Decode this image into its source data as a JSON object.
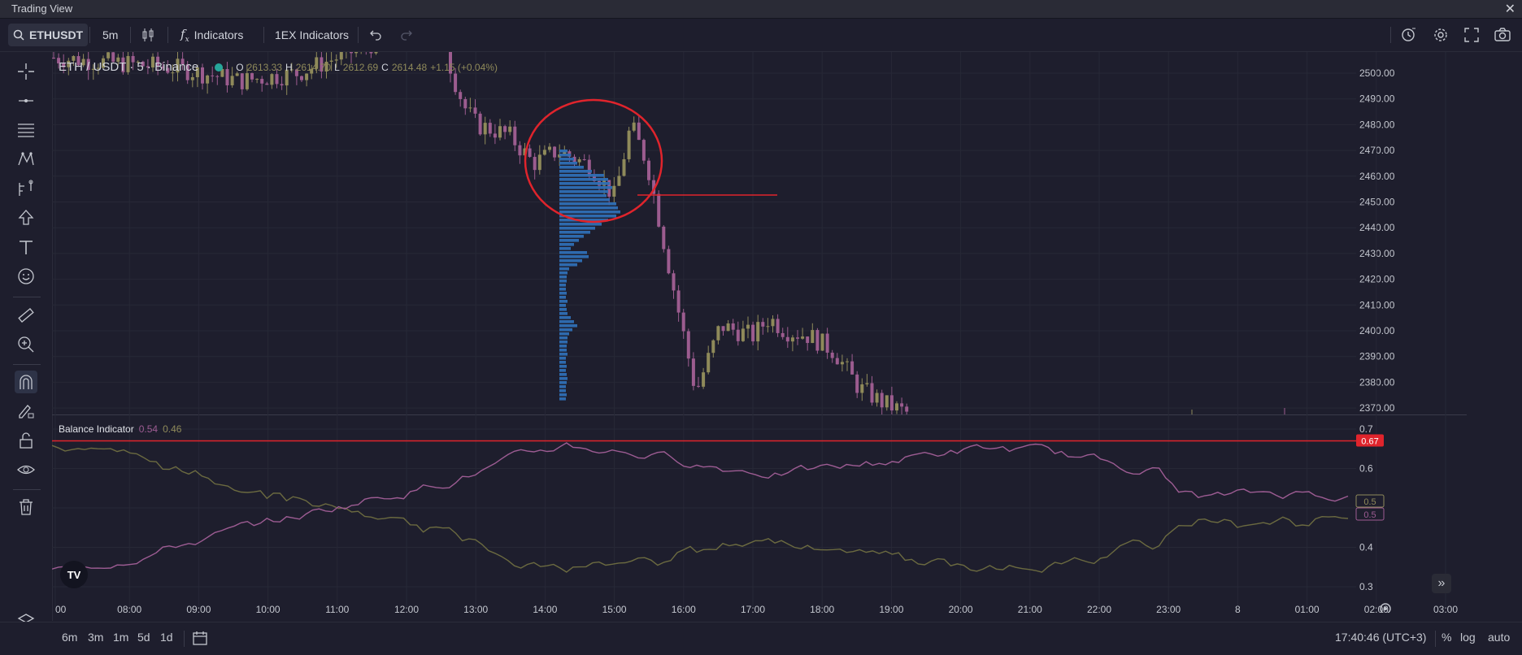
{
  "window": {
    "title": "Trading View",
    "close_glyph": "✕"
  },
  "toolbar": {
    "symbol": "ETHUSDT",
    "interval": "5m",
    "indicators_label": "Indicators",
    "ex_indicators_label": "1EX Indicators"
  },
  "legend": {
    "pair": "ETH / USDT · 5 · Binance",
    "open_label": "O",
    "open": "2613.33",
    "high_label": "H",
    "high": "2614.70",
    "low_label": "L",
    "low": "2612.69",
    "close_label": "C",
    "close": "2614.48",
    "change": "+1.15 (+0.04%)"
  },
  "balance": {
    "name": "Balance Indicator",
    "v1": "0.54",
    "v2": "0.46"
  },
  "price_axis": [
    "2500.00",
    "2490.00",
    "2480.00",
    "2470.00",
    "2460.00",
    "2450.00",
    "2440.00",
    "2430.00",
    "2420.00",
    "2410.00",
    "2400.00",
    "2390.00",
    "2380.00",
    "2370.00"
  ],
  "indicator_axis": [
    "0.7",
    "0.6",
    "0.5",
    "0.4",
    "0.3"
  ],
  "indicator_badges": {
    "line": "0.67",
    "a": "0.5",
    "b": "0.5"
  },
  "time_axis": [
    "00",
    "08:00",
    "09:00",
    "10:00",
    "11:00",
    "12:00",
    "13:00",
    "14:00",
    "15:00",
    "16:00",
    "17:00",
    "18:00",
    "19:00",
    "20:00",
    "21:00",
    "22:00",
    "23:00",
    "8",
    "01:00",
    "02:00",
    "03:00"
  ],
  "bottombar": {
    "ranges": [
      "6m",
      "3m",
      "1m",
      "5d",
      "1d"
    ],
    "clock": "17:40:46 (UTC+3)",
    "percent": "%",
    "log": "log",
    "auto": "auto"
  },
  "logo": "TV",
  "colors": {
    "bg": "#1e1e2d",
    "up": "#8f8a5a",
    "down": "#9c5c8f",
    "volume_profile": "#2f6fb5",
    "annotation": "#e0242c",
    "pink_line": "#9d5c93",
    "olive_line": "#6b6a40"
  }
}
